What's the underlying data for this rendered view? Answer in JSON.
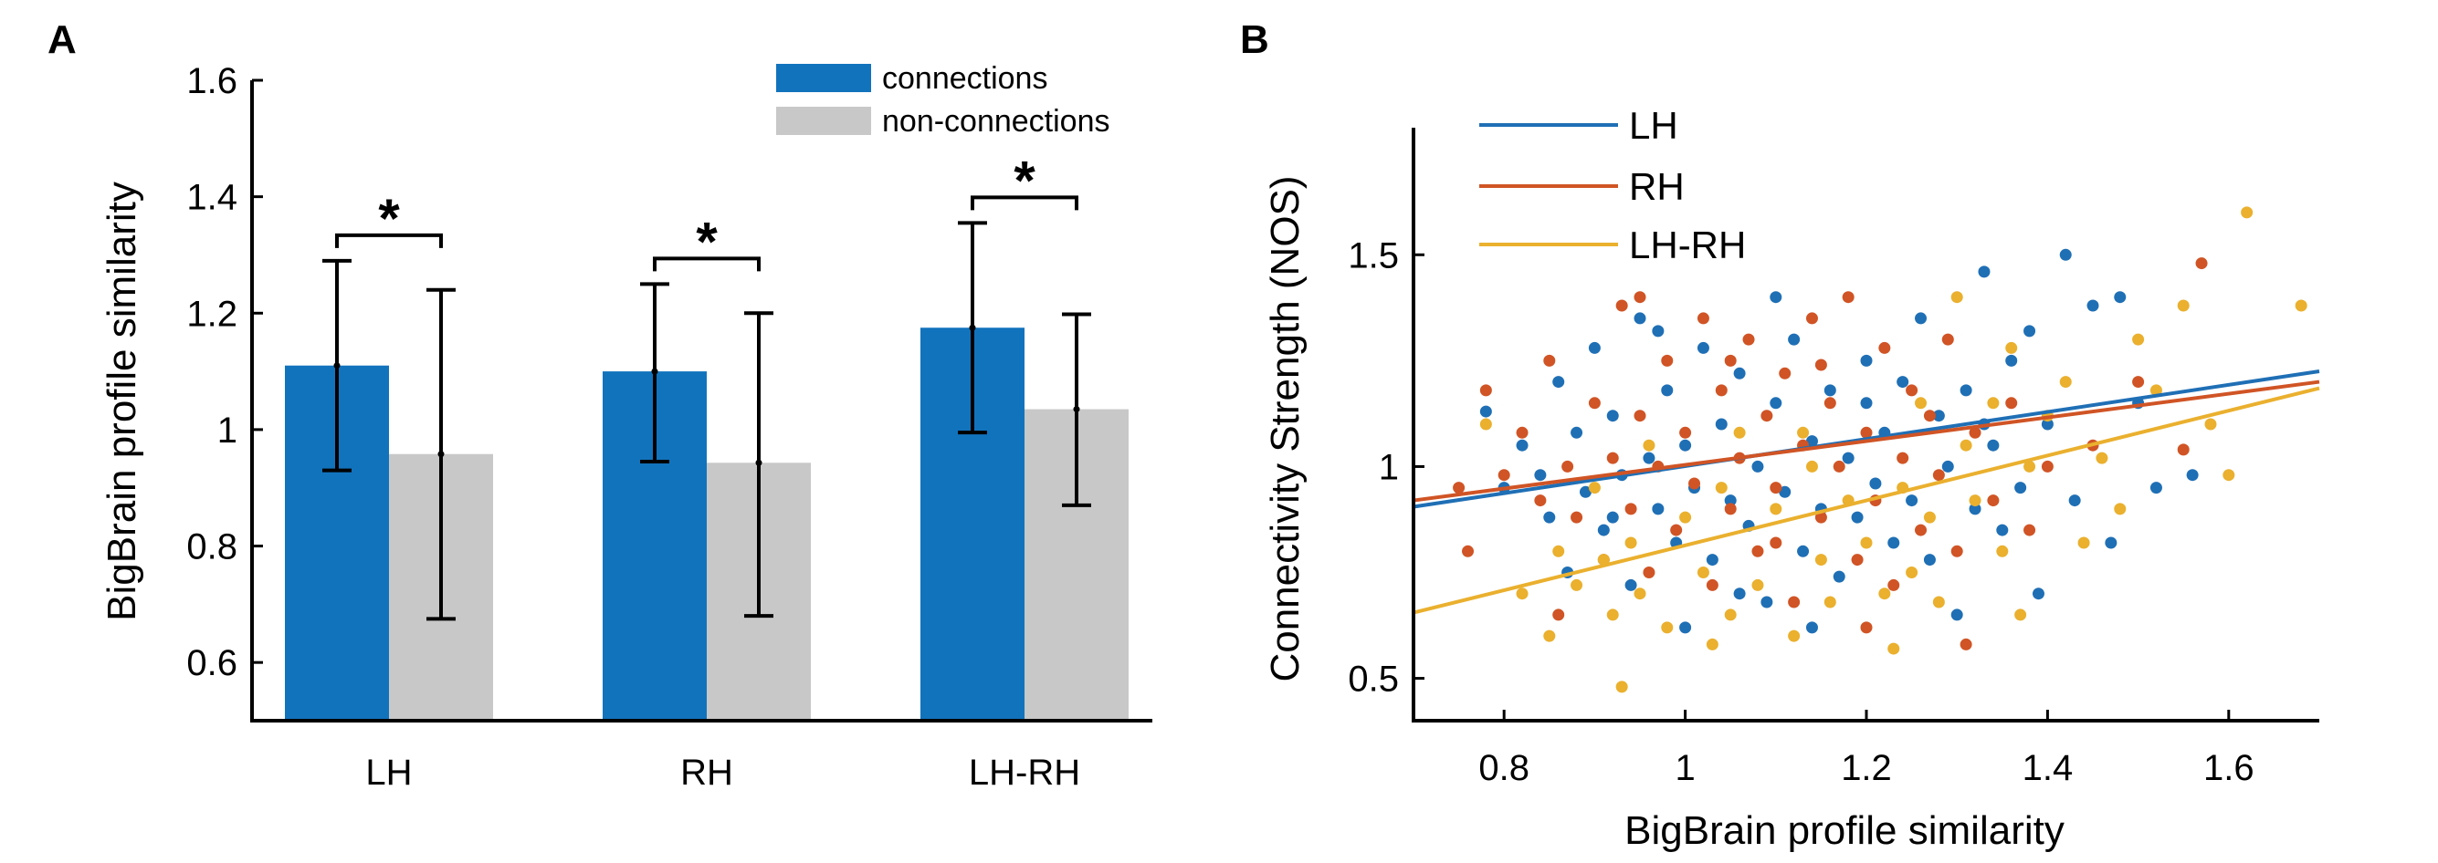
{
  "colors": {
    "connections": "#1273bd",
    "non_connections": "#c8c8c8",
    "LH": "#1f6fb5",
    "RH": "#d05425",
    "LH-RH": "#eab02e"
  },
  "chart_data": [
    {
      "panel": "A",
      "type": "bar",
      "title": "",
      "xlabel": "",
      "ylabel": "BigBrain profile similarity",
      "ylim": [
        0.5,
        1.6
      ],
      "yticks": [
        "0.6",
        "0.8",
        "1",
        "1.2",
        "1.4",
        "1.6"
      ],
      "yticks_num": [
        0.6,
        0.8,
        1.0,
        1.2,
        1.4,
        1.6
      ],
      "categories": [
        "LH",
        "RH",
        "LH-RH"
      ],
      "series": [
        {
          "name": "connections",
          "values": [
            1.11,
            1.1,
            1.175
          ],
          "err_low": [
            0.93,
            0.945,
            0.995
          ],
          "err_high": [
            1.29,
            1.25,
            1.355
          ]
        },
        {
          "name": "non-connections",
          "values": [
            0.958,
            0.943,
            1.035
          ],
          "err_low": [
            0.675,
            0.68,
            0.87
          ],
          "err_high": [
            1.24,
            1.2,
            1.198
          ]
        }
      ],
      "significance": [
        "*",
        "*",
        "*"
      ],
      "legend_position": "top-right",
      "grid": false
    },
    {
      "panel": "B",
      "type": "scatter",
      "title": "",
      "xlabel": "BigBrain profile similarity",
      "ylabel": "Connectivity Strength (NOS)",
      "xlim": [
        0.7,
        1.7
      ],
      "ylim": [
        0.4,
        1.8
      ],
      "xticks": [
        "0.8",
        "1",
        "1.2",
        "1.4",
        "1.6"
      ],
      "xticks_num": [
        0.8,
        1.0,
        1.2,
        1.4,
        1.6
      ],
      "yticks": [
        "0.5",
        "1",
        "1.5"
      ],
      "yticks_num": [
        0.5,
        1.0,
        1.5
      ],
      "legend_position": "top-left",
      "grid": false,
      "series": [
        {
          "name": "LH",
          "fit_line": [
            [
              0.7,
              0.905
            ],
            [
              1.7,
              1.225
            ]
          ],
          "points": [
            [
              0.78,
              1.13
            ],
            [
              0.8,
              0.95
            ],
            [
              0.82,
              1.05
            ],
            [
              0.84,
              0.98
            ],
            [
              0.85,
              0.88
            ],
            [
              0.86,
              1.2
            ],
            [
              0.87,
              0.75
            ],
            [
              0.88,
              1.08
            ],
            [
              0.89,
              0.94
            ],
            [
              0.9,
              1.28
            ],
            [
              0.91,
              0.85
            ],
            [
              0.92,
              1.12
            ],
            [
              0.93,
              0.98
            ],
            [
              0.94,
              0.72
            ],
            [
              0.95,
              1.35
            ],
            [
              0.96,
              1.02
            ],
            [
              0.97,
              0.9
            ],
            [
              0.98,
              1.18
            ],
            [
              0.99,
              0.82
            ],
            [
              1.0,
              1.05
            ],
            [
              1.01,
              0.95
            ],
            [
              1.02,
              1.28
            ],
            [
              1.03,
              0.78
            ],
            [
              1.04,
              1.1
            ],
            [
              1.05,
              0.92
            ],
            [
              1.06,
              1.22
            ],
            [
              1.07,
              0.86
            ],
            [
              1.08,
              1.0
            ],
            [
              1.09,
              0.68
            ],
            [
              1.1,
              1.15
            ],
            [
              1.11,
              0.94
            ],
            [
              1.12,
              1.3
            ],
            [
              1.13,
              0.8
            ],
            [
              1.14,
              1.06
            ],
            [
              1.15,
              0.9
            ],
            [
              1.16,
              1.18
            ],
            [
              1.17,
              0.74
            ],
            [
              1.18,
              1.02
            ],
            [
              1.19,
              0.88
            ],
            [
              1.2,
              1.25
            ],
            [
              1.21,
              0.96
            ],
            [
              1.22,
              1.08
            ],
            [
              1.23,
              0.82
            ],
            [
              1.24,
              1.2
            ],
            [
              1.25,
              0.92
            ],
            [
              1.26,
              1.35
            ],
            [
              1.27,
              0.78
            ],
            [
              1.28,
              1.12
            ],
            [
              1.29,
              1.0
            ],
            [
              1.3,
              0.65
            ],
            [
              1.31,
              1.18
            ],
            [
              1.32,
              0.9
            ],
            [
              1.33,
              1.46
            ],
            [
              1.34,
              1.05
            ],
            [
              1.35,
              0.85
            ],
            [
              1.36,
              1.25
            ],
            [
              1.37,
              0.95
            ],
            [
              1.38,
              1.32
            ],
            [
              1.39,
              0.7
            ],
            [
              1.4,
              1.1
            ],
            [
              1.42,
              1.5
            ],
            [
              1.43,
              0.92
            ],
            [
              1.45,
              1.38
            ],
            [
              1.47,
              0.82
            ],
            [
              1.48,
              1.4
            ],
            [
              1.5,
              1.15
            ],
            [
              1.52,
              0.95
            ],
            [
              1.56,
              0.98
            ],
            [
              1.0,
              0.62
            ],
            [
              1.06,
              0.7
            ],
            [
              1.14,
              0.62
            ],
            [
              0.97,
              1.32
            ],
            [
              0.92,
              0.88
            ],
            [
              1.1,
              1.4
            ],
            [
              1.2,
              1.15
            ],
            [
              1.33,
              1.1
            ]
          ]
        },
        {
          "name": "RH",
          "fit_line": [
            [
              0.7,
              0.92
            ],
            [
              1.7,
              1.2
            ]
          ],
          "points": [
            [
              0.75,
              0.95
            ],
            [
              0.76,
              0.8
            ],
            [
              0.78,
              1.18
            ],
            [
              0.8,
              0.98
            ],
            [
              0.82,
              1.08
            ],
            [
              0.84,
              0.92
            ],
            [
              0.85,
              1.25
            ],
            [
              0.86,
              0.65
            ],
            [
              0.88,
              0.88
            ],
            [
              0.9,
              1.15
            ],
            [
              0.91,
              0.78
            ],
            [
              0.92,
              1.02
            ],
            [
              0.93,
              1.38
            ],
            [
              0.94,
              0.9
            ],
            [
              0.95,
              1.12
            ],
            [
              0.96,
              0.75
            ],
            [
              0.97,
              1.0
            ],
            [
              0.98,
              1.25
            ],
            [
              0.99,
              0.85
            ],
            [
              1.0,
              1.08
            ],
            [
              1.01,
              0.96
            ],
            [
              1.02,
              1.35
            ],
            [
              1.03,
              0.72
            ],
            [
              1.04,
              1.18
            ],
            [
              1.05,
              0.9
            ],
            [
              1.06,
              1.02
            ],
            [
              1.07,
              1.3
            ],
            [
              1.08,
              0.8
            ],
            [
              1.09,
              1.12
            ],
            [
              1.1,
              0.95
            ],
            [
              1.11,
              1.22
            ],
            [
              1.12,
              0.68
            ],
            [
              1.13,
              1.05
            ],
            [
              1.14,
              1.35
            ],
            [
              1.15,
              0.88
            ],
            [
              1.16,
              1.15
            ],
            [
              1.17,
              1.0
            ],
            [
              1.18,
              1.4
            ],
            [
              1.19,
              0.78
            ],
            [
              1.2,
              1.08
            ],
            [
              1.21,
              0.92
            ],
            [
              1.22,
              1.28
            ],
            [
              1.23,
              0.72
            ],
            [
              1.24,
              1.02
            ],
            [
              1.25,
              1.18
            ],
            [
              1.26,
              0.85
            ],
            [
              1.27,
              1.12
            ],
            [
              1.28,
              0.98
            ],
            [
              1.29,
              1.3
            ],
            [
              1.3,
              0.8
            ],
            [
              1.31,
              0.58
            ],
            [
              1.32,
              1.08
            ],
            [
              1.34,
              0.92
            ],
            [
              1.36,
              1.15
            ],
            [
              1.38,
              0.85
            ],
            [
              1.4,
              1.0
            ],
            [
              1.45,
              1.05
            ],
            [
              1.5,
              1.2
            ],
            [
              1.55,
              1.04
            ],
            [
              1.57,
              1.48
            ],
            [
              0.87,
              1.0
            ],
            [
              0.95,
              1.4
            ],
            [
              1.05,
              1.25
            ],
            [
              1.1,
              0.82
            ],
            [
              1.2,
              0.62
            ],
            [
              1.15,
              1.24
            ]
          ]
        },
        {
          "name": "LH-RH",
          "fit_line": [
            [
              0.7,
              0.655
            ],
            [
              1.7,
              1.185
            ]
          ],
          "points": [
            [
              0.78,
              1.1
            ],
            [
              0.82,
              0.7
            ],
            [
              0.85,
              0.6
            ],
            [
              0.86,
              0.8
            ],
            [
              0.88,
              0.72
            ],
            [
              0.9,
              0.95
            ],
            [
              0.92,
              0.65
            ],
            [
              0.93,
              0.48
            ],
            [
              0.94,
              0.82
            ],
            [
              0.95,
              0.7
            ],
            [
              0.96,
              1.05
            ],
            [
              0.98,
              0.62
            ],
            [
              1.0,
              0.88
            ],
            [
              1.02,
              0.75
            ],
            [
              1.04,
              0.95
            ],
            [
              1.05,
              0.65
            ],
            [
              1.06,
              1.08
            ],
            [
              1.08,
              0.72
            ],
            [
              1.1,
              0.9
            ],
            [
              1.12,
              0.6
            ],
            [
              1.14,
              1.0
            ],
            [
              1.15,
              0.78
            ],
            [
              1.16,
              0.68
            ],
            [
              1.18,
              0.92
            ],
            [
              1.2,
              0.82
            ],
            [
              1.22,
              0.7
            ],
            [
              1.23,
              0.57
            ],
            [
              1.24,
              0.95
            ],
            [
              1.25,
              0.75
            ],
            [
              1.26,
              1.15
            ],
            [
              1.27,
              0.88
            ],
            [
              1.28,
              0.68
            ],
            [
              1.3,
              1.4
            ],
            [
              1.31,
              1.05
            ],
            [
              1.32,
              0.92
            ],
            [
              1.34,
              1.15
            ],
            [
              1.35,
              0.8
            ],
            [
              1.36,
              1.28
            ],
            [
              1.37,
              0.65
            ],
            [
              1.38,
              1.0
            ],
            [
              1.4,
              1.12
            ],
            [
              1.42,
              1.2
            ],
            [
              1.44,
              0.82
            ],
            [
              1.46,
              1.02
            ],
            [
              1.48,
              0.9
            ],
            [
              1.5,
              1.3
            ],
            [
              1.52,
              1.18
            ],
            [
              1.55,
              1.38
            ],
            [
              1.58,
              1.1
            ],
            [
              1.62,
              1.6
            ],
            [
              1.6,
              0.98
            ],
            [
              1.68,
              1.38
            ],
            [
              1.13,
              1.08
            ],
            [
              1.03,
              0.58
            ],
            [
              0.91,
              0.78
            ]
          ]
        }
      ]
    }
  ]
}
